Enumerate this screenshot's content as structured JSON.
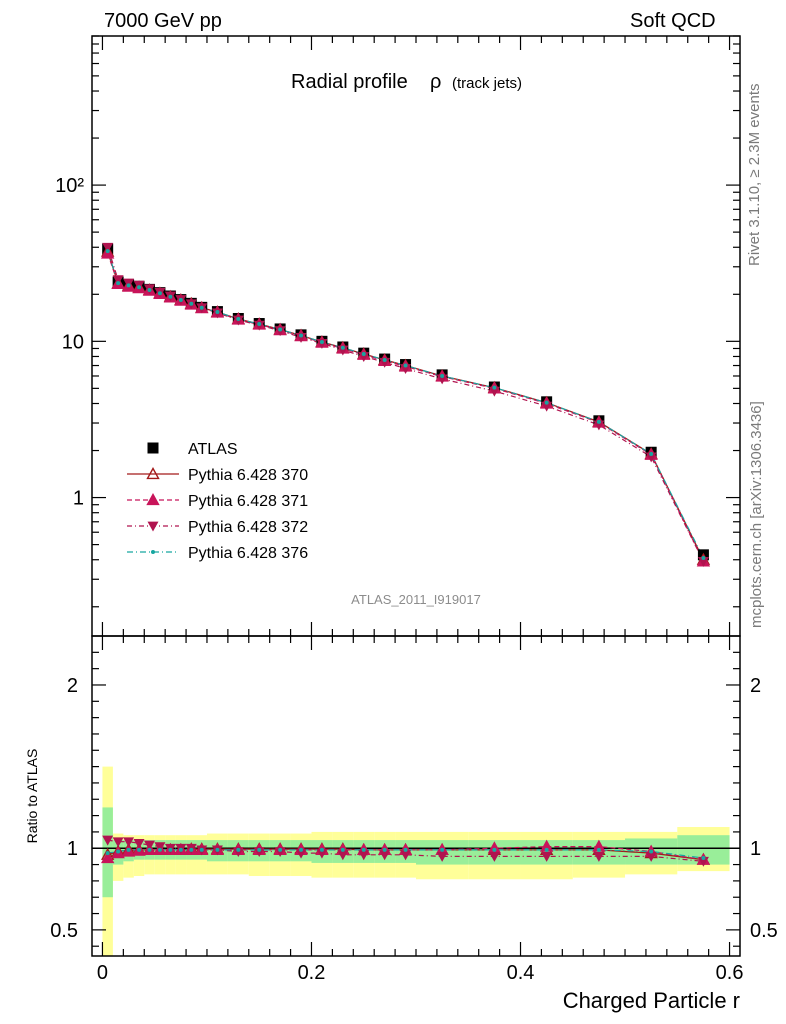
{
  "header": {
    "left": "7000 GeV pp",
    "right": "Soft QCD"
  },
  "side_labels": {
    "rivet": "Rivet 3.1.10, ≥ 2.3M events",
    "mcplots": "mcplots.cern.ch [arXiv:1306.3436]"
  },
  "chart_data": [
    {
      "type": "line",
      "panel": "main",
      "title": "Radial profile",
      "title_symbol": "ρ",
      "title_suffix": "(track jets)",
      "watermark": "ATLAS_2011_I919017",
      "xlabel": "Charged Particle r",
      "ylabel": "",
      "yscale": "log",
      "xlim": [
        -0.01,
        0.61
      ],
      "ylim": [
        0.13,
        900
      ],
      "ytick_labels": [
        "1",
        "10",
        "10²"
      ],
      "legend_position": "center-left",
      "x": [
        0.005,
        0.015,
        0.025,
        0.035,
        0.045,
        0.055,
        0.065,
        0.075,
        0.085,
        0.095,
        0.11,
        0.13,
        0.15,
        0.17,
        0.19,
        0.21,
        0.23,
        0.25,
        0.27,
        0.29,
        0.325,
        0.375,
        0.425,
        0.475,
        0.525,
        0.575
      ],
      "series": [
        {
          "name": "ATLAS",
          "color": "#000000",
          "marker": "square",
          "values": [
            39,
            24,
            23,
            22.5,
            21.5,
            20.5,
            19.5,
            18.5,
            17.5,
            16.5,
            15.5,
            14,
            13,
            12,
            11,
            10,
            9.2,
            8.4,
            7.7,
            7.1,
            6.1,
            5.1,
            4.1,
            3.1,
            1.95,
            0.43
          ]
        },
        {
          "name": "Pythia 6.428 370",
          "color": "#a31a1a",
          "marker": "triangle-up-open",
          "values": [
            37.5,
            23.5,
            22.7,
            22.2,
            21.3,
            20.3,
            19.3,
            18.4,
            17.4,
            16.4,
            15.4,
            13.9,
            12.9,
            11.9,
            10.9,
            9.9,
            9.1,
            8.3,
            7.6,
            7.0,
            6.0,
            5.05,
            4.05,
            3.05,
            1.9,
            0.4
          ]
        },
        {
          "name": "Pythia 6.428 371",
          "color": "#c8145a",
          "marker": "triangle-up",
          "values": [
            36.5,
            23.3,
            22.4,
            21.9,
            21.1,
            20.1,
            19.1,
            18.2,
            17.2,
            16.3,
            15.3,
            13.8,
            12.8,
            11.8,
            10.8,
            9.8,
            9.0,
            8.2,
            7.5,
            6.9,
            5.95,
            5.0,
            4.0,
            3.02,
            1.88,
            0.39
          ]
        },
        {
          "name": "Pythia 6.428 372",
          "color": "#b0144f",
          "marker": "triangle-down",
          "values": [
            40,
            24.8,
            23.6,
            22.9,
            21.7,
            20.6,
            19.5,
            18.5,
            17.4,
            16.4,
            15.2,
            13.7,
            12.7,
            11.7,
            10.6,
            9.7,
            8.8,
            8.0,
            7.35,
            6.7,
            5.75,
            4.8,
            3.85,
            2.92,
            1.82,
            0.39
          ]
        },
        {
          "name": "Pythia 6.428 376",
          "color": "#17a6a0",
          "marker": "dot",
          "values": [
            37.8,
            23.6,
            22.8,
            22.2,
            21.3,
            20.3,
            19.3,
            18.4,
            17.4,
            16.4,
            15.4,
            13.9,
            12.9,
            11.9,
            10.9,
            9.9,
            9.1,
            8.3,
            7.6,
            7.0,
            6.0,
            5.05,
            4.05,
            3.05,
            1.9,
            0.41
          ]
        }
      ]
    },
    {
      "type": "line",
      "panel": "ratio",
      "ylabel": "Ratio to ATLAS",
      "xlabel": "Charged Particle r",
      "xlim": [
        -0.01,
        0.61
      ],
      "ylim": [
        0.34,
        2.3
      ],
      "xtick_labels": [
        "0",
        "0.2",
        "0.4",
        "0.6"
      ],
      "ytick_labels": [
        "0.5",
        "1",
        "2"
      ],
      "x_edges": [
        0,
        0.01,
        0.02,
        0.03,
        0.04,
        0.05,
        0.06,
        0.07,
        0.08,
        0.09,
        0.1,
        0.12,
        0.14,
        0.16,
        0.18,
        0.2,
        0.22,
        0.24,
        0.26,
        0.28,
        0.3,
        0.35,
        0.4,
        0.45,
        0.5,
        0.55,
        0.6
      ],
      "band_total": {
        "color": "#ffff99",
        "lower": [
          0.34,
          0.8,
          0.82,
          0.83,
          0.84,
          0.84,
          0.84,
          0.84,
          0.84,
          0.84,
          0.84,
          0.84,
          0.83,
          0.83,
          0.83,
          0.82,
          0.82,
          0.82,
          0.82,
          0.82,
          0.81,
          0.81,
          0.81,
          0.82,
          0.84,
          0.86
        ],
        "upper": [
          1.5,
          1.09,
          1.08,
          1.08,
          1.08,
          1.08,
          1.08,
          1.08,
          1.08,
          1.08,
          1.09,
          1.09,
          1.09,
          1.09,
          1.09,
          1.1,
          1.1,
          1.1,
          1.1,
          1.1,
          1.1,
          1.1,
          1.1,
          1.1,
          1.1,
          1.13
        ]
      },
      "band_stat": {
        "color": "#99ee99",
        "lower": [
          0.7,
          0.9,
          0.92,
          0.93,
          0.93,
          0.93,
          0.93,
          0.93,
          0.93,
          0.93,
          0.92,
          0.92,
          0.92,
          0.92,
          0.92,
          0.91,
          0.91,
          0.91,
          0.91,
          0.91,
          0.9,
          0.9,
          0.9,
          0.9,
          0.9,
          0.9
        ],
        "upper": [
          1.25,
          1.05,
          1.05,
          1.05,
          1.05,
          1.05,
          1.05,
          1.05,
          1.05,
          1.05,
          1.05,
          1.05,
          1.05,
          1.05,
          1.05,
          1.05,
          1.05,
          1.05,
          1.05,
          1.05,
          1.05,
          1.05,
          1.05,
          1.05,
          1.06,
          1.08
        ]
      },
      "x": [
        0.005,
        0.015,
        0.025,
        0.035,
        0.045,
        0.055,
        0.065,
        0.075,
        0.085,
        0.095,
        0.11,
        0.13,
        0.15,
        0.17,
        0.19,
        0.21,
        0.23,
        0.25,
        0.27,
        0.29,
        0.325,
        0.375,
        0.425,
        0.475,
        0.525,
        0.575
      ],
      "series": [
        {
          "name": "Pythia 6.428 370",
          "values": [
            0.96,
            0.98,
            0.99,
            0.99,
            0.99,
            0.99,
            0.99,
            0.99,
            0.995,
            0.995,
            0.995,
            0.995,
            0.995,
            0.995,
            0.995,
            0.995,
            0.995,
            0.99,
            0.99,
            0.99,
            0.99,
            0.99,
            0.99,
            0.99,
            0.97,
            0.93
          ]
        },
        {
          "name": "Pythia 6.428 371",
          "values": [
            0.94,
            0.97,
            0.98,
            0.985,
            0.99,
            0.99,
            0.99,
            0.99,
            0.99,
            0.99,
            0.99,
            0.99,
            0.99,
            0.99,
            0.99,
            0.99,
            0.99,
            0.99,
            0.99,
            0.99,
            0.99,
            1.0,
            1.01,
            1.01,
            0.98,
            0.93
          ]
        },
        {
          "name": "Pythia 6.428 372",
          "values": [
            1.05,
            1.04,
            1.04,
            1.03,
            1.02,
            1.01,
            1.0,
            1.0,
            1.0,
            0.99,
            0.99,
            0.98,
            0.98,
            0.98,
            0.97,
            0.97,
            0.96,
            0.96,
            0.96,
            0.96,
            0.95,
            0.95,
            0.95,
            0.95,
            0.95,
            0.92
          ]
        },
        {
          "name": "Pythia 6.428 376",
          "values": [
            0.97,
            0.98,
            0.99,
            0.99,
            0.99,
            0.99,
            0.99,
            0.99,
            0.99,
            0.99,
            0.99,
            0.99,
            0.99,
            0.99,
            0.99,
            0.99,
            0.99,
            0.99,
            0.99,
            0.99,
            0.99,
            0.99,
            0.99,
            0.99,
            0.98,
            0.94
          ]
        }
      ]
    }
  ]
}
